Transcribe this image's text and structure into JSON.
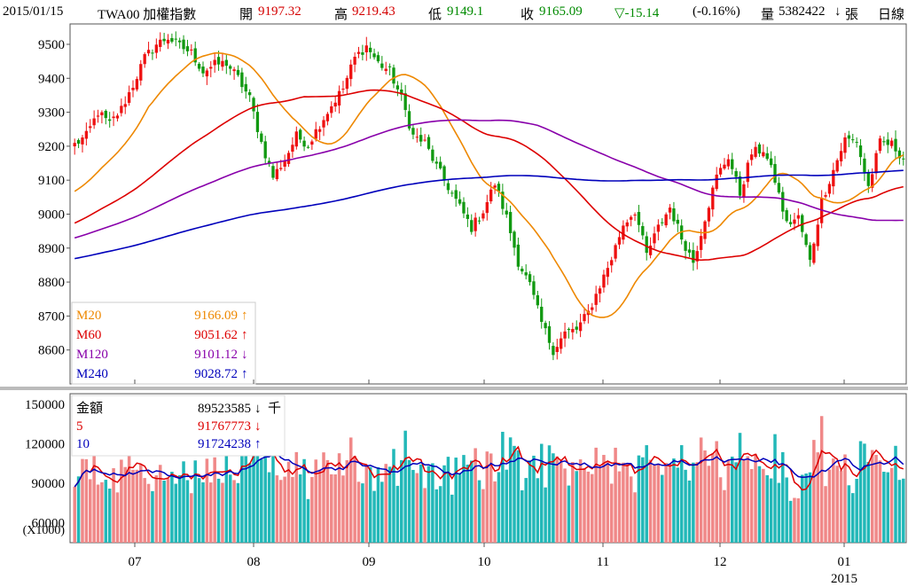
{
  "header": {
    "date": "2015/01/15",
    "symbol": "TWA00 加權指數",
    "open_label": "開",
    "open_value": "9197.32",
    "high_label": "高",
    "high_value": "9219.43",
    "low_label": "低",
    "low_value": "9149.1",
    "close_label": "收",
    "close_value": "9165.09",
    "change_value": "▽-15.14",
    "change_pct": "(-0.16%)",
    "volume_label": "量",
    "volume_value": "5382422",
    "volume_arrow": "↓",
    "volume_unit": "張",
    "period": "日線"
  },
  "chart_data": [
    {
      "type": "candlestick",
      "ylim": [
        8500,
        9560
      ],
      "yticks": [
        "9500",
        "9400",
        "9300",
        "9200",
        "9100",
        "9000",
        "8900",
        "8800",
        "8700",
        "8600"
      ],
      "x_months": [
        "07",
        "08",
        "09",
        "10",
        "11",
        "12",
        "01"
      ],
      "x_year": "2015",
      "colors": {
        "up": "#ee1111",
        "down": "#119911",
        "m20": "#ee8800",
        "m60": "#dd0000",
        "m120": "#8800aa",
        "m240": "#0000bb"
      },
      "legend": [
        {
          "name": "M20",
          "value": "9166.09",
          "arrow": "↑",
          "color": "#ee8800"
        },
        {
          "name": "M60",
          "value": "9051.62",
          "arrow": "↑",
          "color": "#dd0000"
        },
        {
          "name": "M120",
          "value": "9101.12",
          "arrow": "↓",
          "color": "#8800aa"
        },
        {
          "name": "M240",
          "value": "9028.72",
          "arrow": "↑",
          "color": "#0000bb"
        }
      ],
      "close_anchors": [
        [
          0,
          9205
        ],
        [
          3,
          9230
        ],
        [
          6,
          9300
        ],
        [
          9,
          9265
        ],
        [
          12,
          9310
        ],
        [
          15,
          9380
        ],
        [
          18,
          9460
        ],
        [
          21,
          9500
        ],
        [
          24,
          9520
        ],
        [
          27,
          9495
        ],
        [
          30,
          9475
        ],
        [
          33,
          9420
        ],
        [
          36,
          9440
        ],
        [
          39,
          9445
        ],
        [
          42,
          9400
        ],
        [
          45,
          9340
        ],
        [
          48,
          9210
        ],
        [
          51,
          9110
        ],
        [
          54,
          9160
        ],
        [
          57,
          9230
        ],
        [
          60,
          9205
        ],
        [
          63,
          9265
        ],
        [
          66,
          9320
        ],
        [
          69,
          9370
        ],
        [
          72,
          9460
        ],
        [
          75,
          9495
        ],
        [
          78,
          9445
        ],
        [
          81,
          9420
        ],
        [
          84,
          9340
        ],
        [
          87,
          9230
        ],
        [
          90,
          9210
        ],
        [
          93,
          9140
        ],
        [
          96,
          9080
        ],
        [
          99,
          9020
        ],
        [
          102,
          8960
        ],
        [
          105,
          9010
        ],
        [
          108,
          9090
        ],
        [
          111,
          8990
        ],
        [
          114,
          8860
        ],
        [
          117,
          8790
        ],
        [
          120,
          8680
        ],
        [
          123,
          8600
        ],
        [
          126,
          8650
        ],
        [
          129,
          8660
        ],
        [
          132,
          8710
        ],
        [
          135,
          8790
        ],
        [
          138,
          8870
        ],
        [
          141,
          8970
        ],
        [
          144,
          9010
        ],
        [
          147,
          8880
        ],
        [
          150,
          8960
        ],
        [
          153,
          9020
        ],
        [
          156,
          8930
        ],
        [
          159,
          8860
        ],
        [
          162,
          8990
        ],
        [
          165,
          9110
        ],
        [
          168,
          9170
        ],
        [
          171,
          9060
        ],
        [
          174,
          9180
        ],
        [
          177,
          9190
        ],
        [
          180,
          9100
        ],
        [
          183,
          8970
        ],
        [
          186,
          8990
        ],
        [
          189,
          8860
        ],
        [
          192,
          9040
        ],
        [
          195,
          9130
        ],
        [
          198,
          9220
        ],
        [
          201,
          9215
        ],
        [
          204,
          9080
        ],
        [
          207,
          9210
        ],
        [
          210,
          9205
        ],
        [
          213,
          9165
        ]
      ],
      "volume_panel": {
        "ylim": [
          45000,
          158000
        ],
        "yticks": [
          "150000",
          "120000",
          "90000",
          "60000"
        ],
        "yunit": "(X1000)",
        "legend": [
          {
            "name": "金額",
            "value": "89523585",
            "arrow": "↓",
            "unit": "千",
            "color": "#000000"
          },
          {
            "name": "5",
            "value": "91767773",
            "arrow": "↓",
            "color": "#dd0000"
          },
          {
            "name": "10",
            "value": "91724238",
            "arrow": "↑",
            "color": "#0000bb"
          }
        ],
        "bar_colors": {
          "up": "#f08888",
          "down": "#22b8b8"
        }
      }
    }
  ]
}
